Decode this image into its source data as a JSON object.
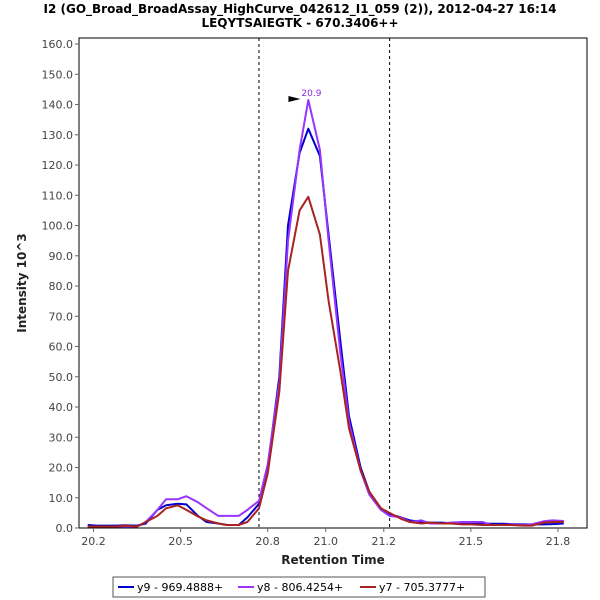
{
  "chart_data": {
    "type": "line",
    "title_line1": "I2 (GO_Broad_BroadAssay_HighCurve_042612_I1_059 (2)), 2012-04-27 16:14",
    "title_line2": "LEQYTSAIEGTK - 670.3406++",
    "xlabel": "Retention Time",
    "ylabel": "Intensity 10^3",
    "xlim": [
      20.15,
      21.9
    ],
    "ylim": [
      0,
      162
    ],
    "x_ticks": [
      "20.2",
      "20.5",
      "20.8",
      "21.0",
      "21.2",
      "21.5",
      "21.8"
    ],
    "y_ticks": [
      "0.0",
      "10.0",
      "20.0",
      "30.0",
      "40.0",
      "50.0",
      "60.0",
      "70.0",
      "80.0",
      "90.0",
      "100.0",
      "110.0",
      "120.0",
      "130.0",
      "140.0",
      "150.0",
      "160.0"
    ],
    "integration_bounds": [
      20.77,
      21.22
    ],
    "grid": false,
    "peak_annotation": {
      "x": 20.93,
      "y": 141.5,
      "label": "20.9",
      "color": "#8a2be2"
    },
    "legend_position": "bottom",
    "x": [
      20.18,
      20.21,
      20.24,
      20.28,
      20.31,
      20.35,
      20.38,
      20.42,
      20.45,
      20.49,
      20.52,
      20.56,
      20.59,
      20.63,
      20.66,
      20.7,
      20.73,
      20.77,
      20.8,
      20.84,
      20.87,
      20.91,
      20.94,
      20.98,
      21.01,
      21.05,
      21.08,
      21.12,
      21.15,
      21.19,
      21.22,
      21.26,
      21.29,
      21.33,
      21.36,
      21.4,
      21.43,
      21.47,
      21.5,
      21.54,
      21.57,
      21.61,
      21.64,
      21.68,
      21.71,
      21.75,
      21.78,
      21.82
    ],
    "series": [
      {
        "name": "y9 - 969.4888+",
        "color": "#0000cc",
        "values": [
          1.0,
          0.8,
          0.8,
          0.8,
          0.9,
          0.8,
          1.5,
          6.0,
          7.5,
          8.0,
          7.8,
          4.0,
          2.0,
          1.5,
          1.0,
          1.0,
          3.5,
          8.0,
          20.0,
          50.0,
          100.0,
          124.0,
          132.0,
          123.0,
          97.0,
          62.0,
          37.0,
          20.0,
          12.0,
          6.5,
          4.5,
          3.5,
          2.5,
          2.0,
          1.8,
          1.8,
          1.6,
          1.6,
          1.5,
          1.5,
          1.4,
          1.4,
          1.3,
          1.2,
          1.2,
          1.2,
          1.3,
          1.5
        ]
      },
      {
        "name": "y8 - 806.4254+",
        "color": "#9933ff",
        "values": [
          0.5,
          0.5,
          0.5,
          0.5,
          0.5,
          0.5,
          2.0,
          6.0,
          9.5,
          9.5,
          10.5,
          8.5,
          6.5,
          4.0,
          4.0,
          4.0,
          6.0,
          9.0,
          21.0,
          48.0,
          95.0,
          125.0,
          141.5,
          125.0,
          95.0,
          58.0,
          35.0,
          19.0,
          11.0,
          6.0,
          4.0,
          3.5,
          2.0,
          2.5,
          1.5,
          1.5,
          1.8,
          2.0,
          2.0,
          2.0,
          1.0,
          1.0,
          1.2,
          1.0,
          1.2,
          2.2,
          2.5,
          2.3
        ]
      },
      {
        "name": "y7 - 705.3777+",
        "color": "#aa2222",
        "values": [
          0.5,
          0.5,
          0.5,
          0.5,
          0.8,
          0.5,
          2.0,
          4.0,
          6.5,
          7.5,
          6.0,
          3.8,
          2.5,
          1.5,
          1.0,
          1.0,
          2.0,
          6.5,
          18.0,
          45.0,
          85.0,
          105.0,
          109.5,
          97.0,
          75.0,
          52.0,
          33.0,
          19.0,
          12.0,
          6.5,
          5.0,
          3.0,
          2.0,
          1.5,
          1.8,
          1.5,
          1.5,
          1.2,
          1.2,
          1.0,
          1.0,
          1.0,
          1.0,
          0.8,
          0.8,
          1.8,
          2.0,
          2.0
        ]
      }
    ]
  }
}
